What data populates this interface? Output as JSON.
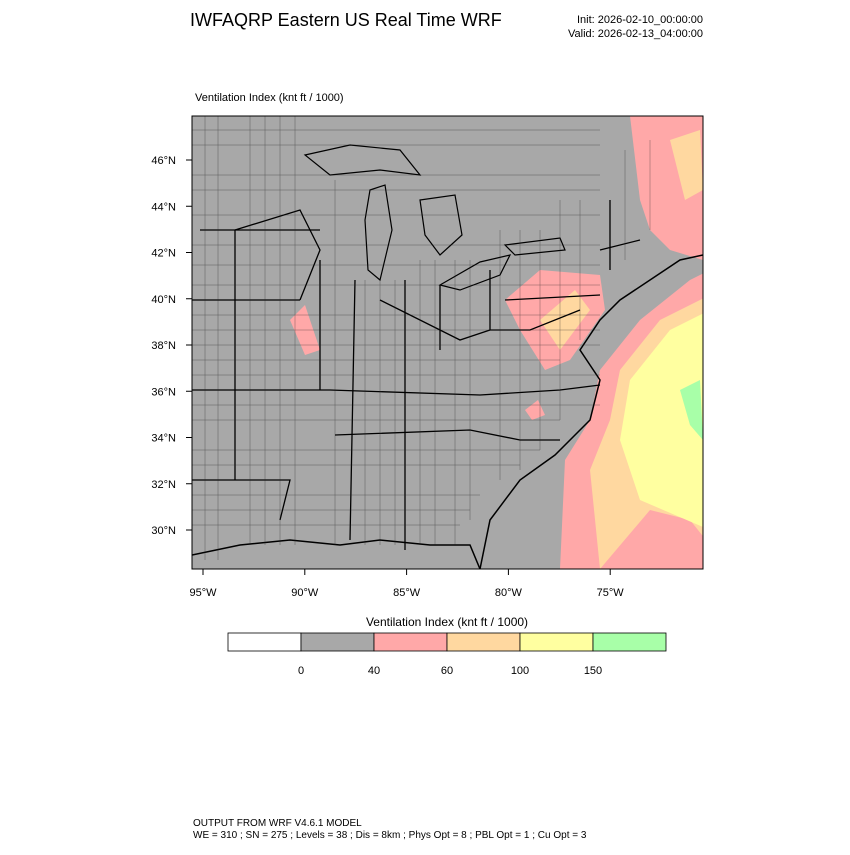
{
  "header": {
    "title": "IWFAQRP Eastern US Real Time WRF",
    "init": "Init: 2026-02-10_00:00:00",
    "valid": "Valid: 2026-02-13_04:00:00"
  },
  "map": {
    "subtitle": "Ventilation Index   (knt ft / 1000)",
    "lat_labels": [
      "46°N",
      "44°N",
      "42°N",
      "40°N",
      "38°N",
      "36°N",
      "34°N",
      "32°N",
      "30°N"
    ],
    "lon_labels": [
      "95°W",
      "90°W",
      "85°W",
      "80°W",
      "75°W"
    ]
  },
  "colorbar": {
    "title": "Ventilation Index  (knt ft / 1000)",
    "labels": [
      0,
      40,
      60,
      100,
      150
    ],
    "colors": [
      "#ffffff",
      "#a8a8a8",
      "#ffa8a8",
      "#ffd8a0",
      "#ffffa0",
      "#a8ffa8"
    ]
  },
  "footer": {
    "line1": "OUTPUT FROM WRF V4.6.1 MODEL",
    "line2": "WE = 310 ; SN = 275 ; Levels = 38 ; Dis = 8km ; Phys Opt = 8 ; PBL Opt = 1 ; Cu Opt = 3"
  }
}
